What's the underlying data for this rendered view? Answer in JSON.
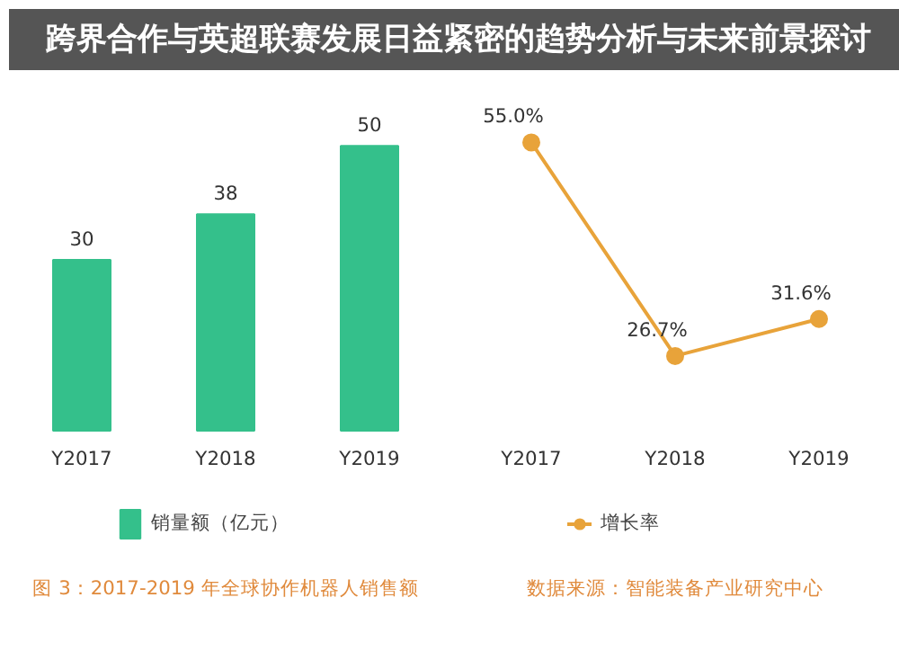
{
  "chart_data": [
    {
      "type": "bar",
      "title": "跨界合作与英超联赛发展日益紧密的趋势分析与未来前景探讨",
      "categories": [
        "Y2017",
        "Y2018",
        "Y2019"
      ],
      "series": [
        {
          "name": "销量额（亿元）",
          "color": "#34c08b",
          "values": [
            30,
            38,
            50
          ]
        }
      ],
      "data_labels": true,
      "legend": "bottom",
      "grid": false,
      "annotations": [
        "图 3：2017-2019 年全球协作机器人销售额"
      ]
    },
    {
      "type": "line",
      "categories": [
        "Y2017",
        "Y2018",
        "Y2019"
      ],
      "series": [
        {
          "name": "增长率",
          "color": "#e8a33a",
          "values": [
            55.0,
            26.7,
            31.6
          ],
          "value_labels": [
            "55.0%",
            "26.7%",
            "31.6%"
          ]
        }
      ],
      "marker": "circle",
      "line_style": "solid",
      "legend": "bottom",
      "grid": false,
      "annotations": [
        "数据来源：智能装备产业研究中心"
      ]
    }
  ]
}
